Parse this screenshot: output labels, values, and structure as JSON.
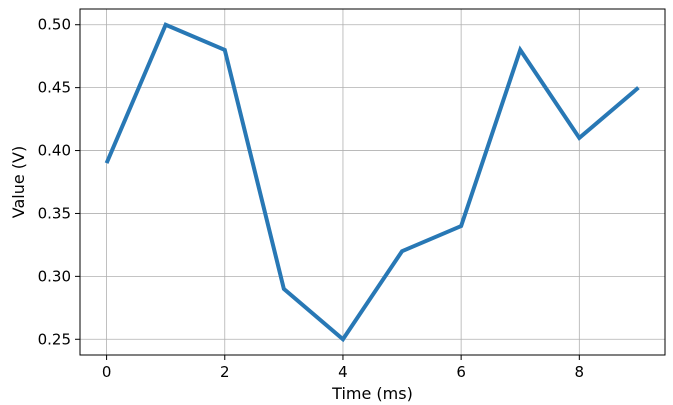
{
  "chart_data": {
    "type": "line",
    "title": "",
    "xlabel": "Time (ms)",
    "ylabel": "Value (V)",
    "x": [
      0,
      1,
      2,
      3,
      4,
      5,
      6,
      7,
      8,
      9
    ],
    "series": [
      {
        "values": [
          0.39,
          0.5,
          0.48,
          0.29,
          0.25,
          0.32,
          0.34,
          0.48,
          0.41,
          0.45
        ],
        "color": "#2878b5"
      }
    ],
    "xlim": [
      -0.45,
      9.45
    ],
    "ylim": [
      0.2375,
      0.5125
    ],
    "xticks": [
      0,
      2,
      4,
      6,
      8
    ],
    "xtick_labels": [
      "0",
      "2",
      "4",
      "6",
      "8"
    ],
    "yticks": [
      0.25,
      0.3,
      0.35,
      0.4,
      0.45,
      0.5
    ],
    "ytick_labels": [
      "0.25",
      "0.30",
      "0.35",
      "0.40",
      "0.45",
      "0.50"
    ],
    "grid": true,
    "legend": false
  }
}
